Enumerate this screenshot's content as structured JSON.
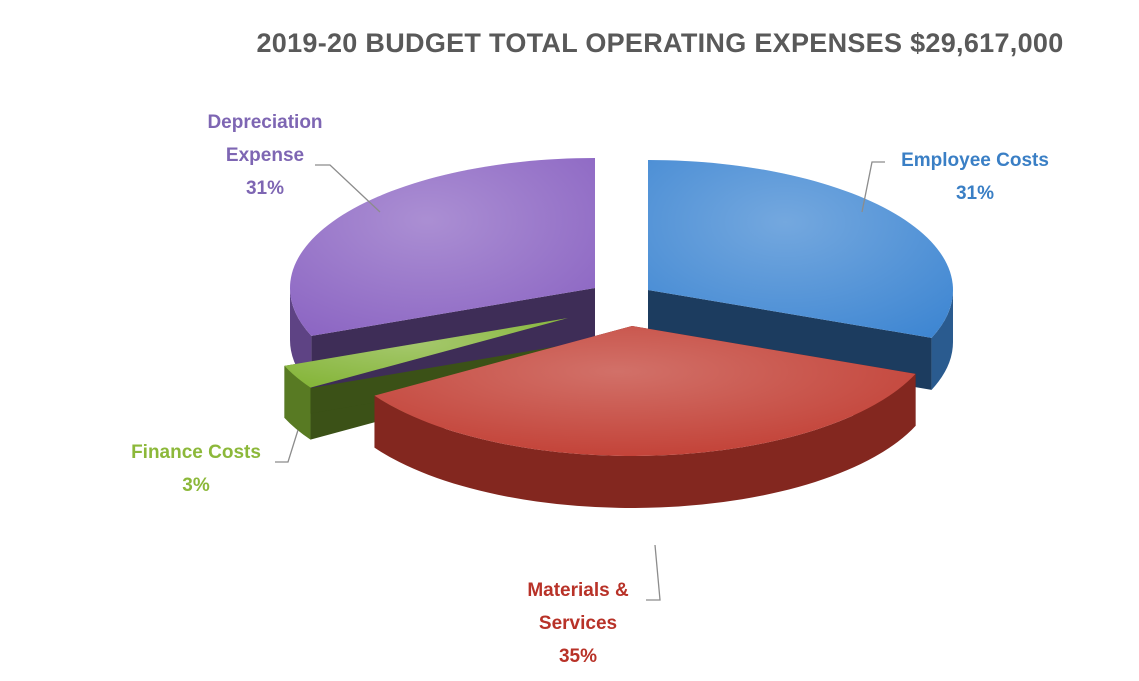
{
  "chart_data": {
    "type": "pie",
    "title": "2019-20 BUDGET TOTAL OPERATING EXPENSES $29,617,000",
    "slices": [
      {
        "key": "employee",
        "label": "Employee Costs",
        "percent_label": "31%",
        "value": 31,
        "color": "#3e86d2"
      },
      {
        "key": "materials",
        "label": "Materials & Services",
        "percent_label": "35%",
        "value": 35,
        "color": "#c0392e"
      },
      {
        "key": "finance",
        "label": "Finance Costs",
        "percent_label": "3%",
        "value": 3,
        "color": "#82b334"
      },
      {
        "key": "depreciation",
        "label": "Depreciation Expense",
        "percent_label": "31%",
        "value": 31,
        "color": "#8a63c2"
      }
    ],
    "label_lines": {
      "employee": [
        "Employee Costs",
        "31%"
      ],
      "materials": [
        "Materials &",
        "Services",
        "35%"
      ],
      "finance": [
        "Finance Costs",
        "3%"
      ],
      "depreciation": [
        "Depreciation",
        "Expense",
        "31%"
      ]
    },
    "legend": "none"
  }
}
